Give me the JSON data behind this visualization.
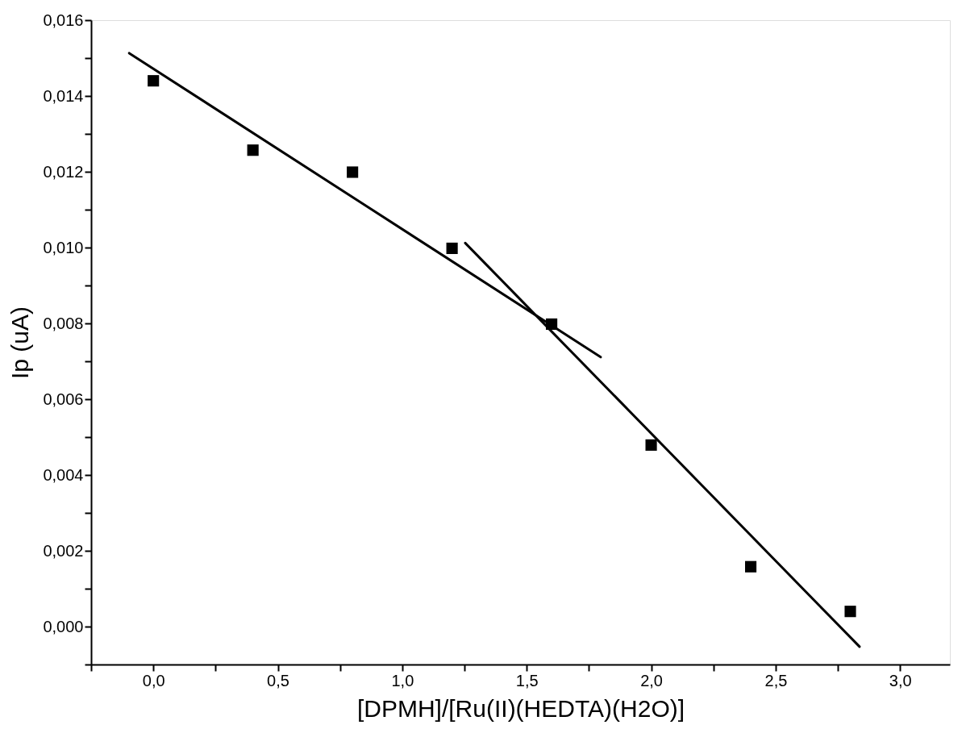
{
  "chart_data": {
    "type": "scatter",
    "xlabel": "[DPMH]/[Ru(II)(HEDTA)(H2O)]",
    "ylabel": "Ip (uA)",
    "x": [
      0,
      0.4,
      0.8,
      1.2,
      1.6,
      2.0,
      2.4,
      2.8
    ],
    "series": [
      {
        "color": "#000000",
        "marker": "square",
        "values": [
          0.0144,
          0.01257,
          0.01199,
          0.00998,
          0.00798,
          0.00479,
          0.00158,
          0.0004
        ]
      },
      {
        "type": "line",
        "color": "#000000",
        "line_style": "solid",
        "x": [
          -0.097,
          1.797
        ],
        "values": [
          0.01513,
          0.00711
        ]
      },
      {
        "type": "line",
        "color": "#000000",
        "line_style": "solid",
        "x": [
          1.253,
          2.837
        ],
        "values": [
          0.01012,
          -0.00053
        ]
      }
    ],
    "xlim": [
      -0.25,
      3.2
    ],
    "ylim": [
      -0.001,
      0.016
    ],
    "xticks": [
      {
        "value": -0.25,
        "label": null
      },
      {
        "value": 0,
        "label": "0,0"
      },
      {
        "value": 0.25,
        "label": null
      },
      {
        "value": 0.5,
        "label": "0,5"
      },
      {
        "value": 0.75,
        "label": null
      },
      {
        "value": 1,
        "label": "1,0"
      },
      {
        "value": 1.25,
        "label": null
      },
      {
        "value": 1.5,
        "label": "1,5"
      },
      {
        "value": 1.75,
        "label": null
      },
      {
        "value": 2,
        "label": "2,0"
      },
      {
        "value": 2.25,
        "label": null
      },
      {
        "value": 2.5,
        "label": "2,5"
      },
      {
        "value": 2.75,
        "label": null
      },
      {
        "value": 3,
        "label": "3,0"
      }
    ],
    "yticks": [
      {
        "value": -0.001,
        "label": null
      },
      {
        "value": 0,
        "label": "0,000"
      },
      {
        "value": 0.001,
        "label": null
      },
      {
        "value": 0.002,
        "label": "0,002"
      },
      {
        "value": 0.003,
        "label": null
      },
      {
        "value": 0.004,
        "label": "0,004"
      },
      {
        "value": 0.005,
        "label": null
      },
      {
        "value": 0.006,
        "label": "0,006"
      },
      {
        "value": 0.007,
        "label": null
      },
      {
        "value": 0.008,
        "label": "0,008"
      },
      {
        "value": 0.009,
        "label": null
      },
      {
        "value": 0.01,
        "label": "0,010"
      },
      {
        "value": 0.011,
        "label": null
      },
      {
        "value": 0.012,
        "label": "0,012"
      },
      {
        "value": 0.013,
        "label": null
      },
      {
        "value": 0.014,
        "label": "0,014"
      },
      {
        "value": 0.015,
        "label": null
      },
      {
        "value": 0.016,
        "label": "0,016"
      }
    ],
    "grid": false
  }
}
